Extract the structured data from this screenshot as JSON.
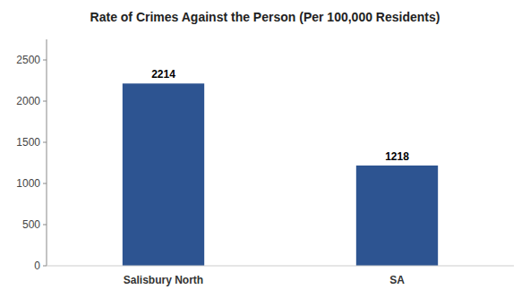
{
  "chart_data": {
    "type": "bar",
    "title": "Rate of Crimes Against the Person (Per 100,000 Residents)",
    "categories": [
      "Salisbury North",
      "SA"
    ],
    "values": [
      2214,
      1218
    ],
    "color": "#2d5491",
    "ylim": [
      0,
      2750
    ],
    "yticks": [
      0,
      500,
      1000,
      1500,
      2000,
      2500
    ],
    "grid": false,
    "data_labels": true
  }
}
